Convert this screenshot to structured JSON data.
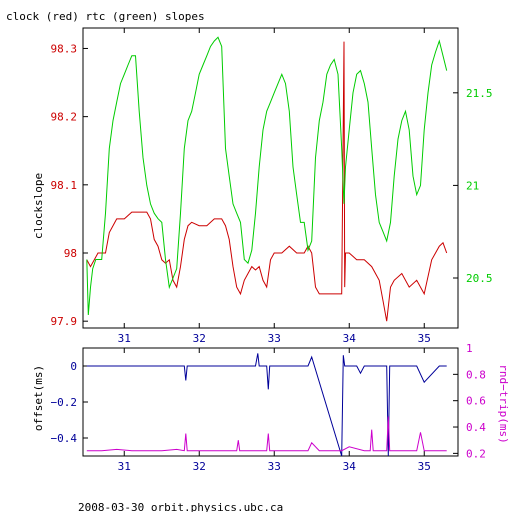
{
  "chart_data": [
    {
      "type": "line",
      "title": "clock (red) rtc (green) slopes",
      "ylabel": "clockslope",
      "x_ticks": [
        "31",
        "32",
        "33",
        "34",
        "35"
      ],
      "xlim": [
        30.45,
        35.45
      ],
      "left_axis": {
        "ylim": [
          97.89,
          98.33
        ],
        "ticks": [
          "98.3",
          "98.2",
          "98.1",
          "98",
          "97.9"
        ],
        "tick_values": [
          98.3,
          98.2,
          98.1,
          98.0,
          97.9
        ],
        "color": "#cc0000"
      },
      "right_axis": {
        "ylim": [
          20.23,
          21.85
        ],
        "ticks": [
          "21.5",
          "21",
          "20.5"
        ],
        "tick_values": [
          21.5,
          21.0,
          20.5
        ],
        "color": "#00cc00"
      },
      "series": [
        {
          "name": "clock",
          "color": "#cc0000",
          "axis": "left",
          "x": [
            30.5,
            30.55,
            30.6,
            30.65,
            30.72,
            30.75,
            30.8,
            30.85,
            30.9,
            31.0,
            31.1,
            31.2,
            31.3,
            31.35,
            31.4,
            31.45,
            31.5,
            31.55,
            31.6,
            31.65,
            31.7,
            31.75,
            31.8,
            31.85,
            31.9,
            32.0,
            32.1,
            32.2,
            32.3,
            32.35,
            32.4,
            32.45,
            32.5,
            32.55,
            32.6,
            32.65,
            32.7,
            32.75,
            32.8,
            32.85,
            32.9,
            32.95,
            33.0,
            33.1,
            33.2,
            33.3,
            33.4,
            33.45,
            33.5,
            33.55,
            33.6,
            33.7,
            33.8,
            33.9,
            33.93,
            33.94,
            33.95,
            34.0,
            34.05,
            34.1,
            34.2,
            34.3,
            34.4,
            34.45,
            34.5,
            34.55,
            34.6,
            34.7,
            34.8,
            34.9,
            35.0,
            35.1,
            35.15,
            35.2,
            35.25,
            35.3
          ],
          "y": [
            97.99,
            97.98,
            97.99,
            98.0,
            98.0,
            98.0,
            98.03,
            98.04,
            98.05,
            98.05,
            98.06,
            98.06,
            98.06,
            98.05,
            98.02,
            98.01,
            97.99,
            97.985,
            97.99,
            97.96,
            97.95,
            97.98,
            98.02,
            98.04,
            98.045,
            98.04,
            98.04,
            98.05,
            98.05,
            98.04,
            98.02,
            97.98,
            97.95,
            97.94,
            97.96,
            97.97,
            97.98,
            97.975,
            97.98,
            97.96,
            97.95,
            97.99,
            98.0,
            98.0,
            98.01,
            98.0,
            98.0,
            98.01,
            98.0,
            97.95,
            97.94,
            97.94,
            97.94,
            97.94,
            98.31,
            97.95,
            98.0,
            98.0,
            97.995,
            97.99,
            97.99,
            97.98,
            97.96,
            97.93,
            97.9,
            97.95,
            97.96,
            97.97,
            97.95,
            97.96,
            97.94,
            97.99,
            98.0,
            98.01,
            98.015,
            98.0
          ]
        },
        {
          "name": "rtc",
          "color": "#00cc00",
          "axis": "right",
          "x": [
            30.5,
            30.52,
            30.55,
            30.58,
            30.62,
            30.65,
            30.7,
            30.75,
            30.8,
            30.85,
            30.9,
            30.95,
            31.0,
            31.05,
            31.1,
            31.15,
            31.2,
            31.25,
            31.3,
            31.35,
            31.4,
            31.45,
            31.5,
            31.55,
            31.6,
            31.65,
            31.7,
            31.75,
            31.8,
            31.85,
            31.9,
            31.95,
            32.0,
            32.05,
            32.1,
            32.15,
            32.2,
            32.25,
            32.3,
            32.35,
            32.4,
            32.45,
            32.5,
            32.55,
            32.6,
            32.65,
            32.7,
            32.75,
            32.8,
            32.85,
            32.9,
            32.95,
            33.0,
            33.05,
            33.1,
            33.15,
            33.2,
            33.25,
            33.3,
            33.35,
            33.4,
            33.45,
            33.5,
            33.55,
            33.6,
            33.65,
            33.7,
            33.75,
            33.8,
            33.85,
            33.9,
            33.93,
            33.95,
            34.0,
            34.05,
            34.1,
            34.15,
            34.2,
            34.25,
            34.3,
            34.35,
            34.4,
            34.45,
            34.5,
            34.55,
            34.6,
            34.65,
            34.7,
            34.75,
            34.8,
            34.85,
            34.9,
            34.95,
            35.0,
            35.05,
            35.1,
            35.15,
            35.2,
            35.25,
            35.3
          ],
          "y": [
            20.6,
            20.3,
            20.45,
            20.55,
            20.6,
            20.6,
            20.6,
            20.85,
            21.2,
            21.35,
            21.45,
            21.55,
            21.6,
            21.65,
            21.7,
            21.7,
            21.4,
            21.15,
            21.0,
            20.9,
            20.85,
            20.82,
            20.8,
            20.6,
            20.45,
            20.5,
            20.55,
            20.85,
            21.2,
            21.35,
            21.4,
            21.5,
            21.6,
            21.65,
            21.7,
            21.75,
            21.78,
            21.8,
            21.75,
            21.2,
            21.05,
            20.9,
            20.85,
            20.8,
            20.6,
            20.58,
            20.65,
            20.85,
            21.1,
            21.3,
            21.4,
            21.45,
            21.5,
            21.55,
            21.6,
            21.55,
            21.4,
            21.1,
            20.95,
            20.8,
            20.8,
            20.65,
            20.7,
            21.15,
            21.35,
            21.45,
            21.6,
            21.65,
            21.68,
            21.6,
            21.2,
            20.9,
            21.1,
            21.3,
            21.5,
            21.6,
            21.62,
            21.55,
            21.45,
            21.2,
            20.95,
            20.8,
            20.75,
            20.7,
            20.8,
            21.05,
            21.25,
            21.35,
            21.4,
            21.3,
            21.05,
            20.95,
            21.0,
            21.3,
            21.5,
            21.65,
            21.72,
            21.78,
            21.7,
            21.62
          ]
        }
      ]
    },
    {
      "type": "line",
      "ylabel_left": "offset(ms)",
      "ylabel_right": "rnd−trip(ms)",
      "x_ticks": [
        "31",
        "32",
        "33",
        "34",
        "35"
      ],
      "xlim": [
        30.45,
        35.45
      ],
      "left_axis": {
        "ylim": [
          -0.5,
          0.1
        ],
        "ticks": [
          "0",
          "−0.2",
          "−0.4"
        ],
        "tick_values": [
          0,
          -0.2,
          -0.4
        ],
        "color": "#000099"
      },
      "right_axis": {
        "ylim": [
          0.18,
          1.0
        ],
        "ticks": [
          "1",
          "0.8",
          "0.6",
          "0.4",
          "0.2"
        ],
        "tick_values": [
          1.0,
          0.8,
          0.6,
          0.4,
          0.2
        ],
        "color": "#cc00cc"
      },
      "series": [
        {
          "name": "offset",
          "color": "#000099",
          "axis": "left",
          "x": [
            30.5,
            30.7,
            30.9,
            31.1,
            31.3,
            31.5,
            31.7,
            31.8,
            31.82,
            31.84,
            32.0,
            32.2,
            32.4,
            32.6,
            32.75,
            32.78,
            32.8,
            32.9,
            32.92,
            32.94,
            33.1,
            33.3,
            33.45,
            33.5,
            33.9,
            33.92,
            33.94,
            34.0,
            34.1,
            34.15,
            34.2,
            34.4,
            34.5,
            34.52,
            34.54,
            34.7,
            34.9,
            35.0,
            35.2,
            35.3
          ],
          "y": [
            0.0,
            0.0,
            0.0,
            0.0,
            0.0,
            0.0,
            0.0,
            0.0,
            -0.08,
            0.0,
            0.0,
            0.0,
            0.0,
            0.0,
            0.0,
            0.07,
            0.0,
            0.0,
            -0.13,
            0.0,
            0.0,
            0.0,
            0.0,
            0.05,
            -0.5,
            0.06,
            0.0,
            0.0,
            0.0,
            -0.04,
            0.0,
            0.0,
            0.0,
            -0.5,
            0.0,
            0.0,
            0.0,
            -0.09,
            0.0,
            0.0
          ]
        },
        {
          "name": "rnd-trip",
          "color": "#cc00cc",
          "axis": "right",
          "x": [
            30.5,
            30.7,
            30.9,
            31.1,
            31.3,
            31.5,
            31.7,
            31.8,
            31.82,
            31.84,
            32.0,
            32.2,
            32.4,
            32.5,
            32.52,
            32.54,
            32.7,
            32.9,
            32.92,
            32.94,
            33.1,
            33.3,
            33.45,
            33.5,
            33.6,
            33.8,
            33.9,
            34.0,
            34.2,
            34.28,
            34.3,
            34.32,
            34.5,
            34.52,
            34.54,
            34.7,
            34.9,
            34.95,
            35.0,
            35.2,
            35.3
          ],
          "y": [
            0.22,
            0.22,
            0.23,
            0.22,
            0.22,
            0.22,
            0.23,
            0.22,
            0.35,
            0.22,
            0.22,
            0.22,
            0.22,
            0.22,
            0.3,
            0.22,
            0.22,
            0.22,
            0.35,
            0.22,
            0.22,
            0.22,
            0.22,
            0.28,
            0.22,
            0.22,
            0.22,
            0.25,
            0.22,
            0.22,
            0.38,
            0.22,
            0.22,
            0.48,
            0.22,
            0.22,
            0.22,
            0.36,
            0.22,
            0.22,
            0.22
          ]
        }
      ]
    }
  ],
  "footer": "2008-03-30  orbit.physics.ubc.ca"
}
